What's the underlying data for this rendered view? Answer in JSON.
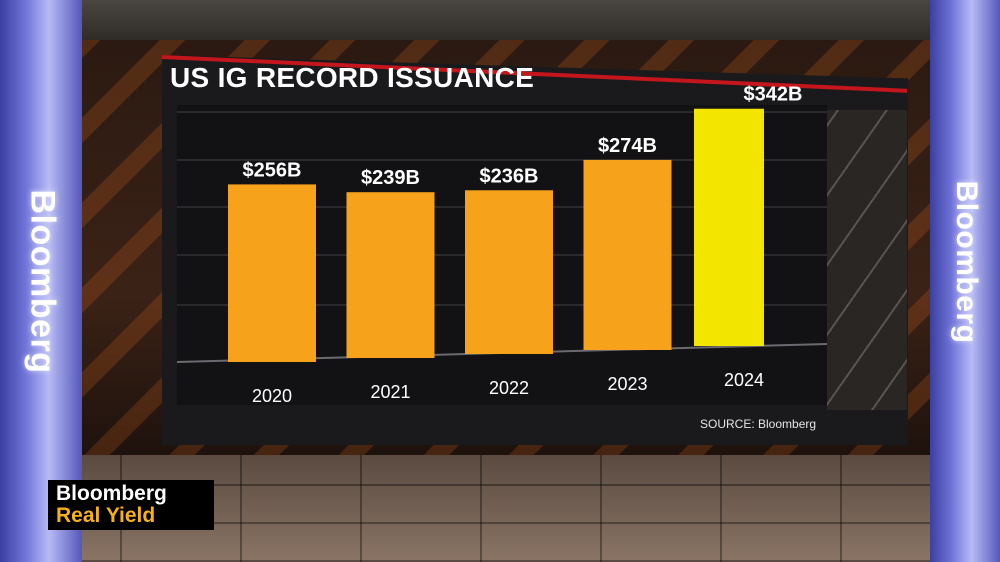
{
  "branding": {
    "pillar_left": "Bloomberg",
    "pillar_right": "Bloomberg",
    "lower_third_line1": "Bloomberg",
    "lower_third_line2": "Real Yield"
  },
  "colors": {
    "bar_default": "#f7a21b",
    "bar_highlight": "#f2e600",
    "accent_red": "#c4161c",
    "lower_third_yellow": "#f5b01a"
  },
  "chart_data": {
    "type": "bar",
    "title": "US IG RECORD ISSUANCE",
    "categories": [
      "2020",
      "2021",
      "2022",
      "2023",
      "2024"
    ],
    "values": [
      256,
      239,
      236,
      274,
      342
    ],
    "value_labels": [
      "$256B",
      "$239B",
      "$236B",
      "$274B",
      "$342B"
    ],
    "highlight_category": "2024",
    "ylim": [
      0,
      400
    ],
    "grid": true,
    "source": "SOURCE: Bloomberg"
  }
}
